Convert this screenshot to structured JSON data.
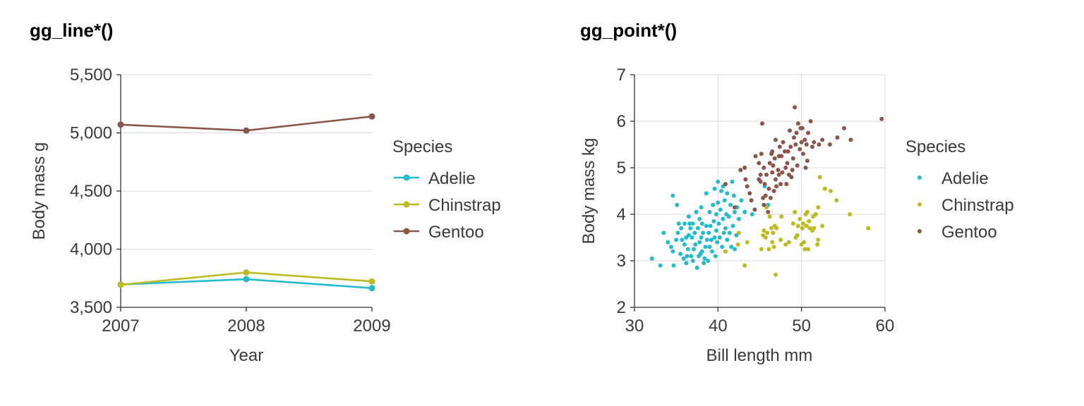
{
  "colors": {
    "Adelie": "#22bccd",
    "Chinstrap": "#bcbc22",
    "Gentoo": "#8c5549"
  },
  "chart_data": [
    {
      "type": "line",
      "title": "gg_line*()",
      "xlabel": "Year",
      "ylabel": "Body mass g",
      "x": [
        2007,
        2008,
        2009
      ],
      "xticks": [
        "2007",
        "2008",
        "2009"
      ],
      "yticks": [
        3500,
        4000,
        4500,
        5000,
        5500
      ],
      "ytick_labels": [
        "3,500",
        "4,000",
        "4,500",
        "5,000",
        "5,500"
      ],
      "ylim": [
        3500,
        5500
      ],
      "legend_title": "Species",
      "series": [
        {
          "name": "Adelie",
          "values": [
            3696,
            3742,
            3665
          ]
        },
        {
          "name": "Chinstrap",
          "values": [
            3694,
            3800,
            3723
          ]
        },
        {
          "name": "Gentoo",
          "values": [
            5071,
            5020,
            5141
          ]
        }
      ]
    },
    {
      "type": "scatter",
      "title": "gg_point*()",
      "xlabel": "Bill length mm",
      "ylabel": "Body mass kg",
      "xticks": [
        30,
        40,
        50,
        60
      ],
      "yticks": [
        2,
        3,
        4,
        5,
        6,
        7
      ],
      "xlim": [
        30,
        60
      ],
      "ylim": [
        2,
        7
      ],
      "legend_title": "Species",
      "series": [
        {
          "name": "Adelie",
          "points": [
            [
              32.1,
              3.05
            ],
            [
              33.1,
              2.9
            ],
            [
              33.5,
              3.6
            ],
            [
              34.0,
              3.4
            ],
            [
              34.4,
              3.3
            ],
            [
              34.6,
              3.2
            ],
            [
              34.6,
              4.4
            ],
            [
              34.7,
              2.9
            ],
            [
              35.0,
              3.45
            ],
            [
              35.1,
              4.2
            ],
            [
              35.2,
              3.6
            ],
            [
              35.3,
              3.8
            ],
            [
              35.5,
              3.15
            ],
            [
              35.6,
              3.7
            ],
            [
              35.7,
              3.45
            ],
            [
              35.9,
              3.05
            ],
            [
              36.0,
              3.35
            ],
            [
              36.0,
              3.8
            ],
            [
              36.2,
              3.5
            ],
            [
              36.3,
              3.1
            ],
            [
              36.4,
              3.25
            ],
            [
              36.5,
              3.55
            ],
            [
              36.6,
              3.8
            ],
            [
              36.7,
              3.7
            ],
            [
              36.8,
              3.1
            ],
            [
              36.9,
              3.5
            ],
            [
              37.0,
              3.0
            ],
            [
              37.0,
              3.8
            ],
            [
              37.2,
              3.6
            ],
            [
              37.3,
              3.35
            ],
            [
              37.5,
              2.85
            ],
            [
              37.6,
              3.7
            ],
            [
              37.7,
              3.1
            ],
            [
              37.8,
              3.4
            ],
            [
              37.8,
              3.9
            ],
            [
              37.9,
              3.15
            ],
            [
              38.0,
              3.5
            ],
            [
              38.1,
              3.2
            ],
            [
              38.1,
              3.8
            ],
            [
              38.2,
              3.6
            ],
            [
              38.3,
              2.95
            ],
            [
              38.5,
              3.3
            ],
            [
              38.6,
              3.75
            ],
            [
              38.6,
              4.45
            ],
            [
              38.7,
              3.45
            ],
            [
              38.8,
              3.0
            ],
            [
              38.9,
              3.6
            ],
            [
              39.0,
              3.3
            ],
            [
              39.0,
              4.05
            ],
            [
              39.1,
              3.75
            ],
            [
              39.2,
              3.45
            ],
            [
              39.3,
              3.2
            ],
            [
              39.5,
              3.85
            ],
            [
              39.6,
              3.5
            ],
            [
              39.6,
              4.55
            ],
            [
              39.7,
              3.1
            ],
            [
              39.8,
              3.65
            ],
            [
              39.8,
              4.0
            ],
            [
              39.9,
              3.4
            ],
            [
              40.0,
              4.25
            ],
            [
              40.1,
              3.8
            ],
            [
              40.2,
              3.5
            ],
            [
              40.3,
              4.1
            ],
            [
              40.5,
              3.3
            ],
            [
              40.6,
              3.9
            ],
            [
              40.6,
              4.6
            ],
            [
              40.7,
              3.6
            ],
            [
              40.8,
              4.3
            ],
            [
              40.9,
              3.7
            ],
            [
              41.0,
              4.0
            ],
            [
              41.1,
              3.45
            ],
            [
              41.1,
              4.45
            ],
            [
              41.3,
              3.95
            ],
            [
              41.4,
              3.6
            ],
            [
              41.5,
              4.2
            ],
            [
              41.6,
              3.3
            ],
            [
              41.7,
              4.7
            ],
            [
              41.8,
              3.75
            ],
            [
              42.0,
              4.05
            ],
            [
              42.2,
              3.55
            ],
            [
              42.3,
              4.15
            ],
            [
              42.5,
              3.9
            ],
            [
              42.8,
              4.3
            ],
            [
              43.2,
              4.05
            ],
            [
              44.1,
              4.0
            ],
            [
              45.6,
              4.6
            ],
            [
              46.0,
              4.2
            ],
            [
              37.4,
              4.05
            ],
            [
              38.0,
              4.15
            ],
            [
              36.5,
              3.95
            ],
            [
              39.4,
              4.2
            ],
            [
              40.4,
              4.5
            ],
            [
              37.1,
              3.25
            ],
            [
              38.4,
              3.05
            ],
            [
              36.2,
              2.95
            ],
            [
              41.9,
              4.4
            ],
            [
              42.0,
              3.25
            ],
            [
              40.0,
              4.7
            ]
          ]
        },
        {
          "name": "Chinstrap",
          "points": [
            [
              40.9,
              3.2
            ],
            [
              42.4,
              3.35
            ],
            [
              42.5,
              3.6
            ],
            [
              43.2,
              2.9
            ],
            [
              43.5,
              3.4
            ],
            [
              45.2,
              3.25
            ],
            [
              45.4,
              3.55
            ],
            [
              45.5,
              3.65
            ],
            [
              45.7,
              3.5
            ],
            [
              45.9,
              3.6
            ],
            [
              46.1,
              3.25
            ],
            [
              46.4,
              3.7
            ],
            [
              46.5,
              3.4
            ],
            [
              46.6,
              3.6
            ],
            [
              46.7,
              3.3
            ],
            [
              46.8,
              3.75
            ],
            [
              46.9,
              2.7
            ],
            [
              47.0,
              3.7
            ],
            [
              47.5,
              3.45
            ],
            [
              48.1,
              3.35
            ],
            [
              48.5,
              3.4
            ],
            [
              49.0,
              3.8
            ],
            [
              49.2,
              4.05
            ],
            [
              49.5,
              3.55
            ],
            [
              49.6,
              3.75
            ],
            [
              49.8,
              3.9
            ],
            [
              50.0,
              3.35
            ],
            [
              50.1,
              3.7
            ],
            [
              50.2,
              3.8
            ],
            [
              50.3,
              3.4
            ],
            [
              50.5,
              4.0
            ],
            [
              50.6,
              3.75
            ],
            [
              50.7,
              4.05
            ],
            [
              50.8,
              3.25
            ],
            [
              50.9,
              3.85
            ],
            [
              51.0,
              3.7
            ],
            [
              51.3,
              3.65
            ],
            [
              51.4,
              3.95
            ],
            [
              51.5,
              3.7
            ],
            [
              51.7,
              4.0
            ],
            [
              51.9,
              3.35
            ],
            [
              52.0,
              3.45
            ],
            [
              52.0,
              4.15
            ],
            [
              52.2,
              4.8
            ],
            [
              52.5,
              3.75
            ],
            [
              52.8,
              4.55
            ],
            [
              53.5,
              4.5
            ],
            [
              54.2,
              4.3
            ],
            [
              55.8,
              4.0
            ],
            [
              58.0,
              3.7
            ],
            [
              46.2,
              3.95
            ],
            [
              45.8,
              4.15
            ],
            [
              47.6,
              3.95
            ],
            [
              49.3,
              3.5
            ],
            [
              50.4,
              3.25
            ]
          ]
        },
        {
          "name": "Gentoo",
          "points": [
            [
              40.9,
              4.65
            ],
            [
              42.0,
              4.15
            ],
            [
              42.7,
              4.95
            ],
            [
              43.2,
              5.0
            ],
            [
              43.3,
              4.75
            ],
            [
              43.5,
              4.6
            ],
            [
              43.8,
              4.45
            ],
            [
              44.0,
              4.3
            ],
            [
              44.4,
              4.1
            ],
            [
              44.5,
              5.25
            ],
            [
              44.9,
              4.75
            ],
            [
              45.1,
              4.85
            ],
            [
              45.2,
              5.3
            ],
            [
              45.3,
              5.95
            ],
            [
              45.4,
              4.35
            ],
            [
              45.5,
              4.2
            ],
            [
              45.5,
              5.0
            ],
            [
              45.7,
              4.4
            ],
            [
              45.8,
              4.85
            ],
            [
              46.1,
              4.55
            ],
            [
              46.2,
              5.1
            ],
            [
              46.3,
              4.35
            ],
            [
              46.4,
              5.3
            ],
            [
              46.5,
              4.9
            ],
            [
              46.6,
              5.05
            ],
            [
              46.7,
              4.5
            ],
            [
              46.8,
              5.2
            ],
            [
              46.9,
              4.75
            ],
            [
              47.2,
              4.95
            ],
            [
              47.3,
              4.85
            ],
            [
              47.4,
              5.45
            ],
            [
              47.5,
              4.65
            ],
            [
              47.6,
              5.25
            ],
            [
              47.7,
              4.9
            ],
            [
              47.8,
              5.55
            ],
            [
              48.1,
              5.0
            ],
            [
              48.2,
              4.65
            ],
            [
              48.4,
              5.35
            ],
            [
              48.5,
              4.85
            ],
            [
              48.6,
              5.8
            ],
            [
              48.7,
              5.45
            ],
            [
              48.8,
              4.8
            ],
            [
              49.0,
              5.2
            ],
            [
              49.1,
              5.65
            ],
            [
              49.2,
              6.3
            ],
            [
              49.3,
              5.5
            ],
            [
              49.4,
              5.75
            ],
            [
              49.5,
              5.05
            ],
            [
              49.6,
              5.95
            ],
            [
              49.8,
              5.4
            ],
            [
              50.0,
              5.55
            ],
            [
              50.1,
              5.85
            ],
            [
              50.2,
              5.3
            ],
            [
              50.4,
              5.6
            ],
            [
              50.5,
              5.0
            ],
            [
              50.8,
              5.75
            ],
            [
              51.1,
              6.0
            ],
            [
              51.3,
              5.45
            ],
            [
              51.5,
              5.55
            ],
            [
              52.1,
              5.5
            ],
            [
              52.5,
              5.6
            ],
            [
              53.4,
              5.5
            ],
            [
              54.3,
              5.65
            ],
            [
              55.1,
              5.85
            ],
            [
              55.9,
              5.6
            ],
            [
              59.6,
              6.05
            ],
            [
              46.0,
              4.05
            ],
            [
              45.1,
              4.7
            ],
            [
              47.0,
              4.6
            ],
            [
              48.3,
              5.1
            ],
            [
              44.9,
              5.1
            ],
            [
              46.5,
              5.35
            ],
            [
              49.9,
              5.85
            ],
            [
              50.7,
              5.15
            ],
            [
              47.3,
              5.25
            ],
            [
              45.6,
              4.65
            ],
            [
              48.9,
              4.95
            ],
            [
              50.6,
              5.5
            ],
            [
              46.9,
              5.6
            ],
            [
              48.0,
              5.35
            ]
          ]
        }
      ]
    }
  ]
}
